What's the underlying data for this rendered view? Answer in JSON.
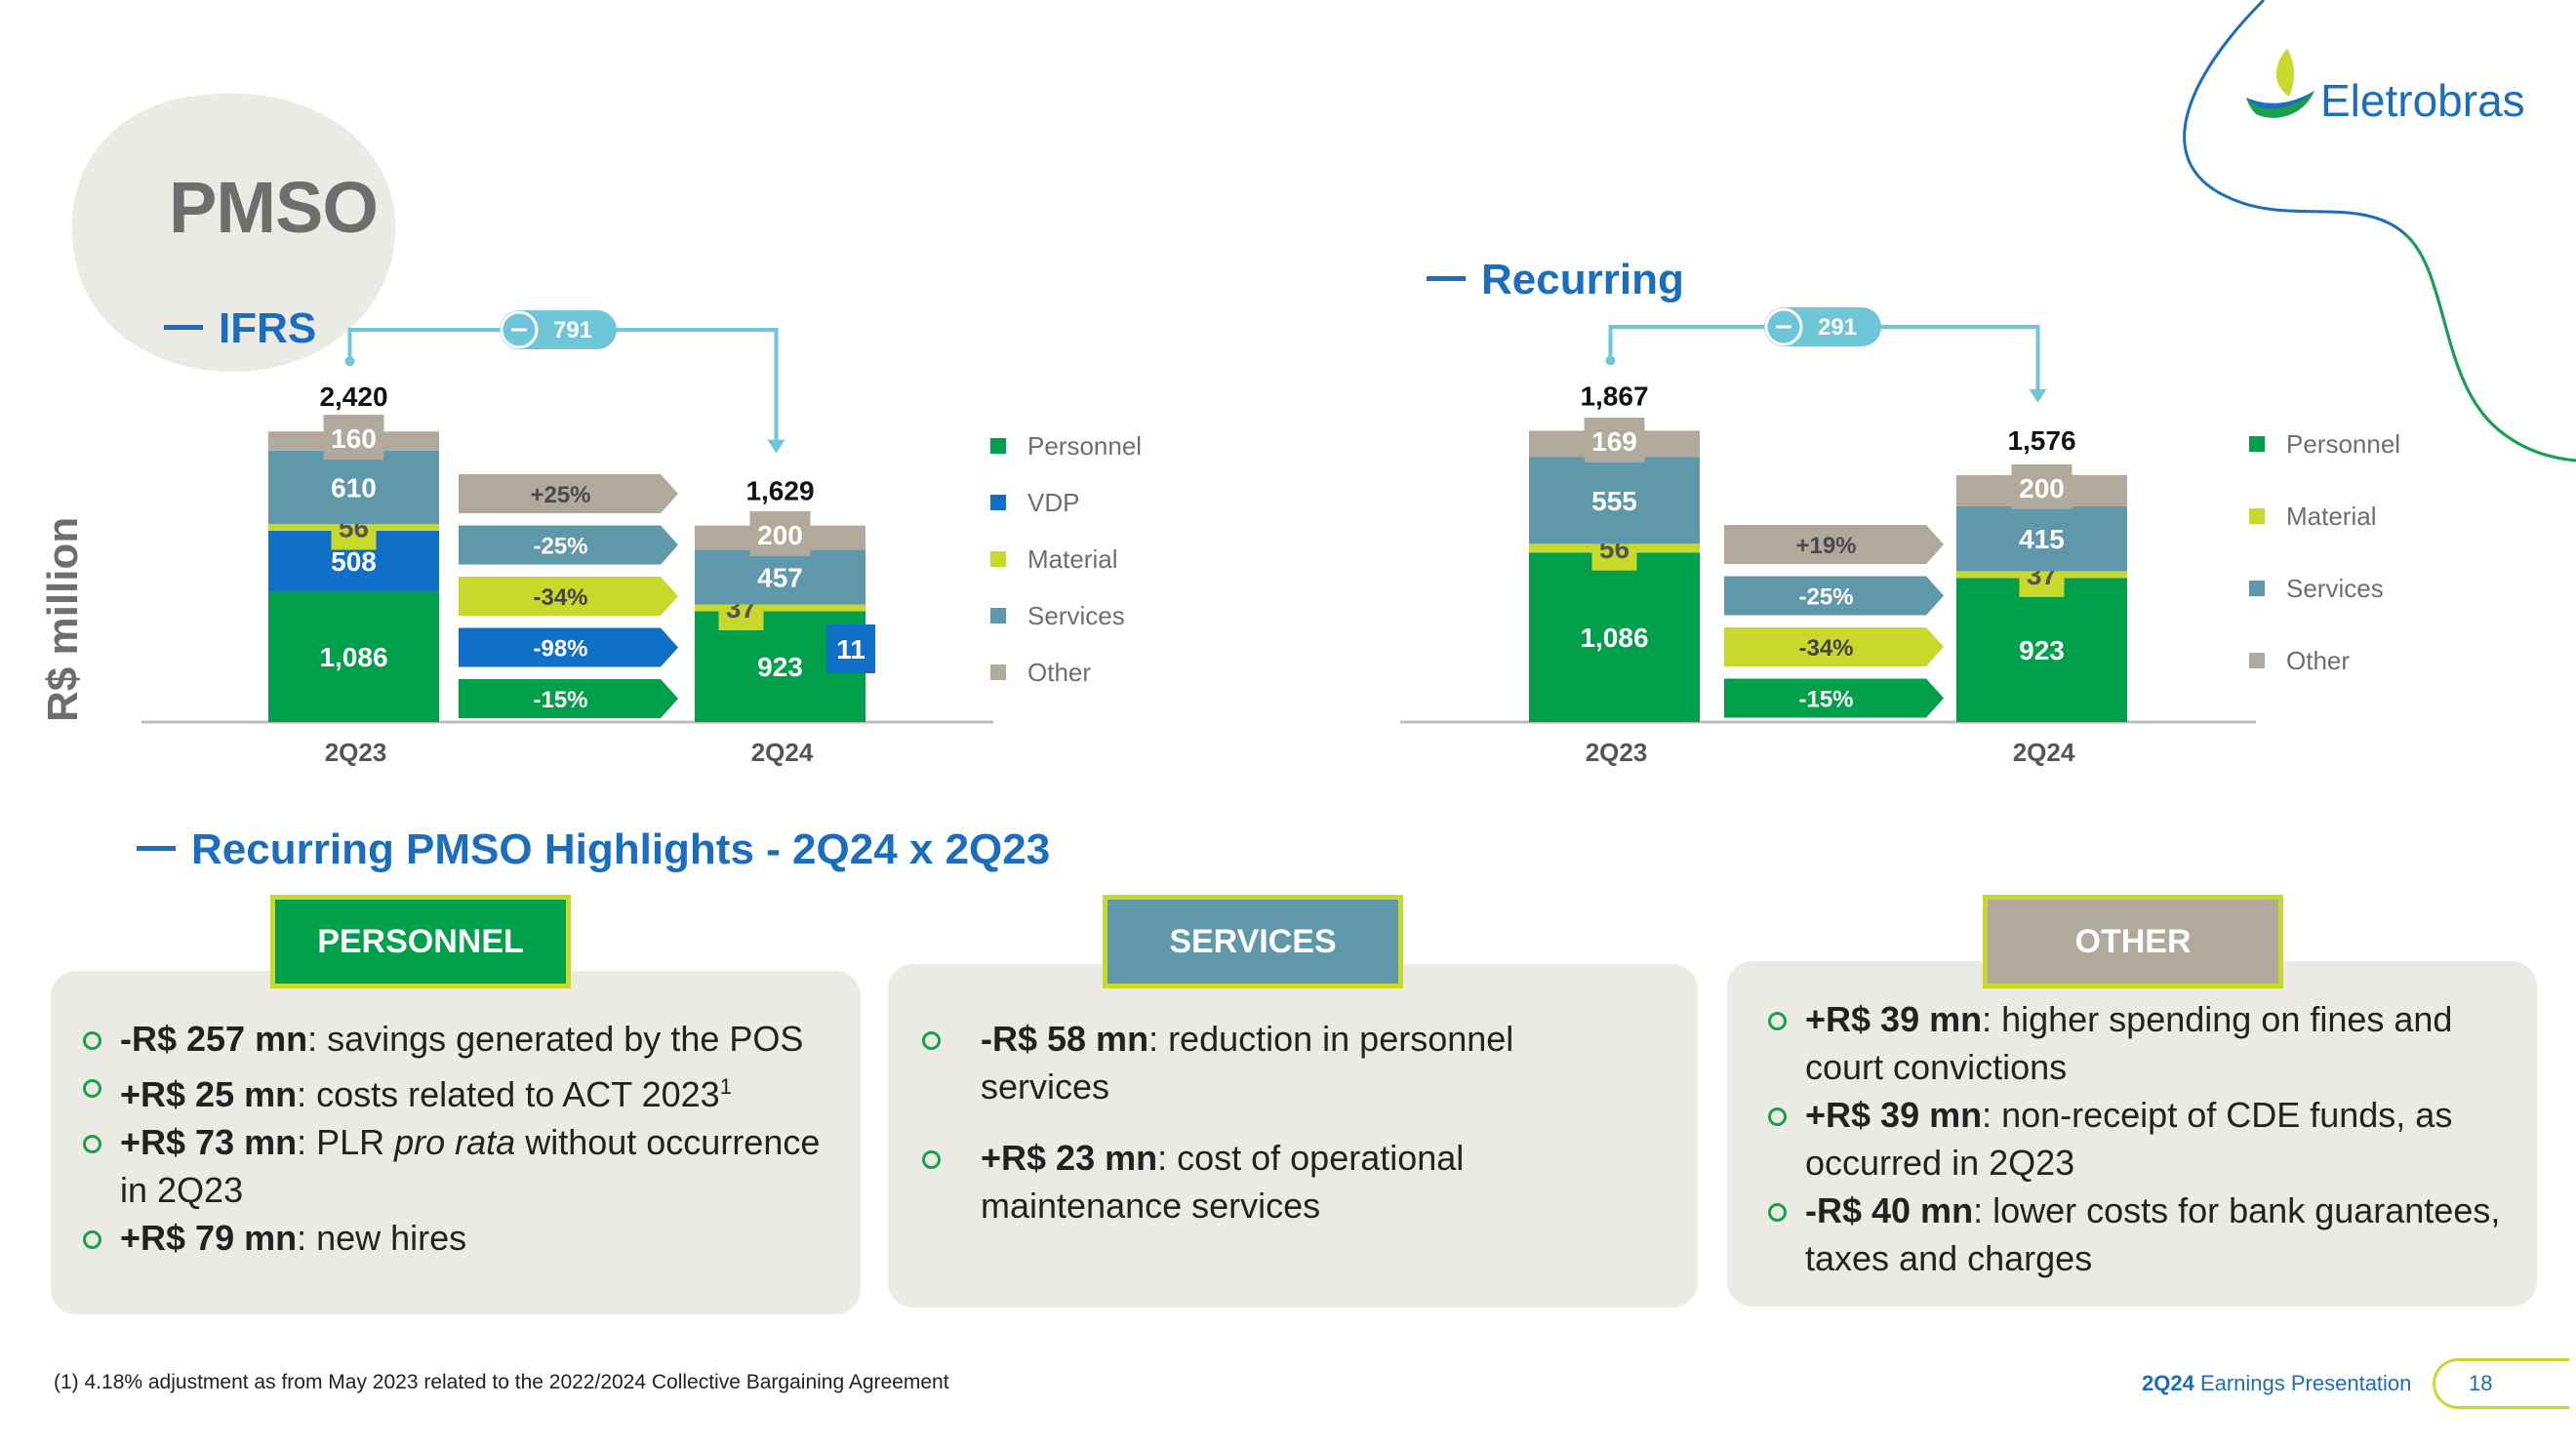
{
  "page": {
    "title": "PMSO",
    "ylabel": "R$ million",
    "logo_text": "Eletrobras",
    "footnote": "(1) 4.18% adjustment as from May 2023 related to the 2022/2024 Collective Bargaining Agreement",
    "footer_strong": "2Q24",
    "footer_text": " Earnings Presentation",
    "page_number": "18"
  },
  "colors": {
    "personnel": "#00a04a",
    "vdp": "#1070c8",
    "material": "#c8d92b",
    "services": "#5f97ab",
    "other": "#b1a99c",
    "blue_title": "#1a6dbf",
    "connector": "#6fc6d9"
  },
  "chart_data": [
    {
      "type": "bar",
      "title": "IFRS",
      "categories": [
        "2Q23",
        "2Q24"
      ],
      "totals": [
        "2,420",
        "1,629"
      ],
      "difference_label": "791",
      "series": [
        {
          "name": "Personnel",
          "color_key": "personnel",
          "values": [
            1086,
            923
          ],
          "labels": [
            "1,086",
            "923"
          ]
        },
        {
          "name": "VDP",
          "color_key": "vdp",
          "values": [
            508,
            11
          ],
          "labels": [
            "508",
            "11"
          ]
        },
        {
          "name": "Material",
          "color_key": "material",
          "values": [
            56,
            37
          ],
          "labels": [
            "56",
            "37"
          ]
        },
        {
          "name": "Services",
          "color_key": "services",
          "values": [
            610,
            457
          ],
          "labels": [
            "610",
            "457"
          ]
        },
        {
          "name": "Other",
          "color_key": "other",
          "values": [
            160,
            200
          ],
          "labels": [
            "160",
            "200"
          ]
        }
      ],
      "variations": [
        {
          "label": "+25%",
          "color_key": "other"
        },
        {
          "label": "-25%",
          "color_key": "services"
        },
        {
          "label": "-34%",
          "color_key": "material"
        },
        {
          "label": "-98%",
          "color_key": "vdp"
        },
        {
          "label": "-15%",
          "color_key": "personnel"
        }
      ],
      "legend": [
        "Personnel",
        "VDP",
        "Material",
        "Services",
        "Other"
      ],
      "legend_colors": [
        "personnel",
        "vdp",
        "material",
        "services",
        "other"
      ]
    },
    {
      "type": "bar",
      "title": "Recurring",
      "categories": [
        "2Q23",
        "2Q24"
      ],
      "totals": [
        "1,867",
        "1,576"
      ],
      "difference_label": "291",
      "series": [
        {
          "name": "Personnel",
          "color_key": "personnel",
          "values": [
            1086,
            923
          ],
          "labels": [
            "1,086",
            "923"
          ]
        },
        {
          "name": "Material",
          "color_key": "material",
          "values": [
            56,
            37
          ],
          "labels": [
            "56",
            "37"
          ]
        },
        {
          "name": "Services",
          "color_key": "services",
          "values": [
            555,
            415
          ],
          "labels": [
            "555",
            "415"
          ]
        },
        {
          "name": "Other",
          "color_key": "other",
          "values": [
            169,
            200
          ],
          "labels": [
            "169",
            "200"
          ]
        }
      ],
      "variations": [
        {
          "label": "+19%",
          "color_key": "other"
        },
        {
          "label": "-25%",
          "color_key": "services"
        },
        {
          "label": "-34%",
          "color_key": "material"
        },
        {
          "label": "-15%",
          "color_key": "personnel"
        }
      ],
      "legend": [
        "Personnel",
        "Material",
        "Services",
        "Other"
      ],
      "legend_colors": [
        "personnel",
        "material",
        "services",
        "other"
      ]
    }
  ],
  "highlights": {
    "title": "Recurring PMSO Highlights - 2Q24 x 2Q23",
    "cards": [
      {
        "badge": "PERSONNEL",
        "badge_color": "personnel",
        "items": [
          {
            "strong": "-R$ 257 mn",
            "text": ": savings generated by the POS"
          },
          {
            "strong": "+R$ 25 mn",
            "text": ": costs related to ACT 2023",
            "sup": "1"
          },
          {
            "strong": "+R$ 73 mn",
            "text": ": PLR ",
            "em": "pro rata",
            "text2": " without occurrence in 2Q23"
          },
          {
            "strong": "+R$ 79 mn",
            "text": ": new hires"
          }
        ]
      },
      {
        "badge": "SERVICES",
        "badge_color": "services",
        "items": [
          {
            "strong": "-R$ 58 mn",
            "text": ": reduction in personnel services"
          },
          {
            "strong": "+R$ 23 mn",
            "text": ": cost of operational maintenance services"
          }
        ]
      },
      {
        "badge": "OTHER",
        "badge_color": "other",
        "items": [
          {
            "strong": "+R$ 39 mn",
            "text": ": higher spending on fines and court convictions"
          },
          {
            "strong": "+R$ 39 mn",
            "text": ": non-receipt of CDE funds, as occurred in 2Q23"
          },
          {
            "strong": "-R$ 40 mn",
            "text": ": lower costs for bank guarantees, taxes and charges"
          }
        ]
      }
    ]
  }
}
